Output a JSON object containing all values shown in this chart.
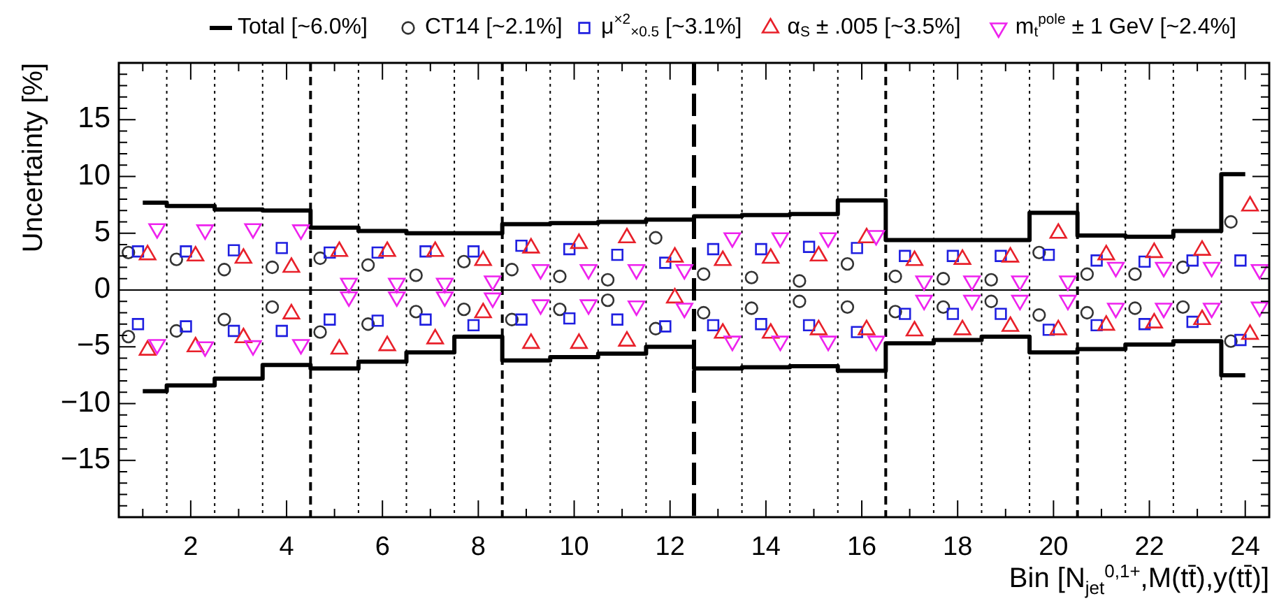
{
  "chart_data": {
    "type": "scatter",
    "xlabel": "Bin [N$_{jet}$$^{0,1+}$,M(tt̄),y(tt̄)]",
    "ylabel": "Uncertainty [%]",
    "legend": "top",
    "xlim": [
      0.5,
      24.5
    ],
    "ylim": [
      -20,
      20
    ],
    "xticks": [
      {
        "value": 1,
        "label": null
      },
      2,
      {
        "value": 3,
        "label": null
      },
      4,
      {
        "value": 5,
        "label": null
      },
      6,
      {
        "value": 7,
        "label": null
      },
      8,
      {
        "value": 9,
        "label": null
      },
      10,
      {
        "value": 11,
        "label": null
      },
      12,
      {
        "value": 13,
        "label": null
      },
      14,
      {
        "value": 15,
        "label": null
      },
      16,
      {
        "value": 17,
        "label": null
      },
      18,
      {
        "value": 19,
        "label": null
      },
      20,
      {
        "value": 21,
        "label": null
      },
      22,
      {
        "value": 23,
        "label": null
      },
      24
    ],
    "yticks": [
      {
        "value": -20,
        "label": null
      },
      {
        "value": -19,
        "label": null
      },
      {
        "value": -18,
        "label": null
      },
      {
        "value": -17,
        "label": null
      },
      {
        "value": -16,
        "label": null
      },
      {
        "value": -15,
        "label": "−15"
      },
      {
        "value": -14,
        "label": null
      },
      {
        "value": -13,
        "label": null
      },
      {
        "value": -12,
        "label": null
      },
      {
        "value": -11,
        "label": null
      },
      {
        "value": -10,
        "label": "−10"
      },
      {
        "value": -9,
        "label": null
      },
      {
        "value": -8,
        "label": null
      },
      {
        "value": -7,
        "label": null
      },
      {
        "value": -6,
        "label": null
      },
      {
        "value": -5,
        "label": "−5"
      },
      {
        "value": -4,
        "label": null
      },
      {
        "value": -3,
        "label": null
      },
      {
        "value": -2,
        "label": null
      },
      {
        "value": -1,
        "label": null
      },
      0,
      {
        "value": 1,
        "label": null
      },
      {
        "value": 2,
        "label": null
      },
      {
        "value": 3,
        "label": null
      },
      {
        "value": 4,
        "label": null
      },
      5,
      {
        "value": 6,
        "label": null
      },
      {
        "value": 7,
        "label": null
      },
      {
        "value": 8,
        "label": null
      },
      {
        "value": 9,
        "label": null
      },
      10,
      {
        "value": 11,
        "label": null
      },
      {
        "value": 12,
        "label": null
      },
      {
        "value": 13,
        "label": null
      },
      {
        "value": 14,
        "label": null
      },
      15,
      {
        "value": 16,
        "label": null
      },
      {
        "value": 17,
        "label": null
      },
      {
        "value": 18,
        "label": null
      },
      {
        "value": 19,
        "label": null
      },
      {
        "value": 20,
        "label": null
      }
    ],
    "ref_lines": [
      {
        "axis": "y",
        "value": 0,
        "line_style": "solid"
      },
      {
        "axis": "x",
        "value": 1.5,
        "line_style": "dotted"
      },
      {
        "axis": "x",
        "value": 2.5,
        "line_style": "dotted"
      },
      {
        "axis": "x",
        "value": 3.5,
        "line_style": "dotted"
      },
      {
        "axis": "x",
        "value": 4.5,
        "line_style": "dashed"
      },
      {
        "axis": "x",
        "value": 5.5,
        "line_style": "dotted"
      },
      {
        "axis": "x",
        "value": 6.5,
        "line_style": "dotted"
      },
      {
        "axis": "x",
        "value": 7.5,
        "line_style": "dotted"
      },
      {
        "axis": "x",
        "value": 8.5,
        "line_style": "dashed"
      },
      {
        "axis": "x",
        "value": 9.5,
        "line_style": "dotted"
      },
      {
        "axis": "x",
        "value": 10.5,
        "line_style": "dotted"
      },
      {
        "axis": "x",
        "value": 11.5,
        "line_style": "dotted"
      },
      {
        "axis": "x",
        "value": 12.5,
        "line_style": "longdash"
      },
      {
        "axis": "x",
        "value": 13.5,
        "line_style": "dotted"
      },
      {
        "axis": "x",
        "value": 14.5,
        "line_style": "dotted"
      },
      {
        "axis": "x",
        "value": 15.5,
        "line_style": "dotted"
      },
      {
        "axis": "x",
        "value": 16.5,
        "line_style": "dashed"
      },
      {
        "axis": "x",
        "value": 17.5,
        "line_style": "dotted"
      },
      {
        "axis": "x",
        "value": 18.5,
        "line_style": "dotted"
      },
      {
        "axis": "x",
        "value": 19.5,
        "line_style": "dotted"
      },
      {
        "axis": "x",
        "value": 20.5,
        "line_style": "dashed"
      },
      {
        "axis": "x",
        "value": 21.5,
        "line_style": "dotted"
      },
      {
        "axis": "x",
        "value": 22.5,
        "line_style": "dotted"
      },
      {
        "axis": "x",
        "value": 23.5,
        "line_style": "dotted"
      }
    ],
    "series": [
      {
        "name": "Total [~6.0%]",
        "type": "step",
        "color": "#000000",
        "x": [
          1,
          2,
          3,
          4,
          5,
          6,
          7,
          8,
          9,
          10,
          11,
          12,
          13,
          14,
          15,
          16,
          17,
          18,
          19,
          20,
          21,
          22,
          23,
          24
        ],
        "values": [
          7.7,
          7.4,
          7.1,
          7.0,
          5.5,
          5.2,
          5.0,
          5.0,
          5.8,
          5.9,
          6.0,
          6.2,
          6.5,
          6.6,
          6.7,
          7.9,
          4.4,
          4.4,
          4.4,
          6.8,
          4.8,
          4.7,
          5.2,
          10.2
        ]
      },
      {
        "type": "step",
        "color": "#000000",
        "x": [
          1,
          2,
          3,
          4,
          5,
          6,
          7,
          8,
          9,
          10,
          11,
          12,
          13,
          14,
          15,
          16,
          17,
          18,
          19,
          20,
          21,
          22,
          23,
          24
        ],
        "values": [
          -8.9,
          -8.4,
          -7.8,
          -6.6,
          -6.9,
          -6.3,
          -5.5,
          -4.1,
          -6.2,
          -5.9,
          -5.6,
          -5.0,
          -6.9,
          -6.8,
          -6.7,
          -7.1,
          -4.7,
          -4.4,
          -4.1,
          -5.5,
          -5.2,
          -4.8,
          -4.5,
          -7.5
        ]
      },
      {
        "name": "CT14 [~2.1%]",
        "marker": "circle",
        "color": "#333333",
        "x": [
          0.7,
          1.7,
          2.7,
          3.7,
          4.7,
          5.7,
          6.7,
          7.7,
          8.7,
          9.7,
          10.7,
          11.7,
          12.7,
          13.7,
          14.7,
          15.7,
          16.7,
          17.7,
          18.7,
          19.7,
          20.7,
          21.7,
          22.7,
          23.7
        ],
        "values": [
          3.3,
          2.7,
          1.8,
          2.0,
          2.8,
          2.2,
          1.3,
          2.5,
          1.8,
          1.2,
          0.9,
          4.6,
          1.4,
          1.1,
          0.8,
          2.3,
          1.2,
          1.0,
          0.9,
          3.3,
          1.4,
          1.4,
          2.0,
          6.0
        ]
      },
      {
        "marker": "circle",
        "color": "#333333",
        "x": [
          0.7,
          1.7,
          2.7,
          3.7,
          4.7,
          5.7,
          6.7,
          7.7,
          8.7,
          9.7,
          10.7,
          11.7,
          12.7,
          13.7,
          14.7,
          15.7,
          16.7,
          17.7,
          18.7,
          19.7,
          20.7,
          21.7,
          22.7,
          23.7
        ],
        "values": [
          -4.1,
          -3.6,
          -2.6,
          -1.5,
          -3.7,
          -3.0,
          -1.9,
          -1.7,
          -2.6,
          -1.7,
          -0.9,
          -3.4,
          -2.0,
          -1.6,
          -1.0,
          -1.5,
          -1.9,
          -1.5,
          -1.0,
          -2.2,
          -2.0,
          -1.6,
          -1.5,
          -4.5
        ]
      },
      {
        "name": "μ$^{×2}$$_{×0.5}$ [~3.1%]",
        "marker": "square",
        "color": "#1f1fe0",
        "x": [
          0.9,
          1.9,
          2.9,
          3.9,
          4.9,
          5.9,
          6.9,
          7.9,
          8.9,
          9.9,
          10.9,
          11.9,
          12.9,
          13.9,
          14.9,
          15.9,
          16.9,
          17.9,
          18.9,
          19.9,
          20.9,
          21.9,
          22.9,
          23.9
        ],
        "values": [
          3.4,
          3.4,
          3.5,
          3.7,
          3.3,
          3.3,
          3.4,
          3.4,
          3.9,
          3.6,
          3.1,
          2.4,
          3.6,
          3.6,
          3.8,
          3.7,
          3.0,
          3.0,
          3.0,
          3.1,
          2.6,
          2.5,
          2.6,
          2.6
        ]
      },
      {
        "marker": "square",
        "color": "#1f1fe0",
        "x": [
          0.9,
          1.9,
          2.9,
          3.9,
          4.9,
          5.9,
          6.9,
          7.9,
          8.9,
          9.9,
          10.9,
          11.9,
          12.9,
          13.9,
          14.9,
          15.9,
          16.9,
          17.9,
          18.9,
          19.9,
          20.9,
          21.9,
          22.9,
          23.9
        ],
        "values": [
          -3.0,
          -3.2,
          -3.6,
          -3.6,
          -2.6,
          -2.7,
          -2.6,
          -3.1,
          -2.6,
          -2.5,
          -2.6,
          -3.2,
          -3.1,
          -3.0,
          -3.1,
          -3.7,
          -2.1,
          -2.1,
          -2.1,
          -3.5,
          -3.1,
          -3.0,
          -2.8,
          -4.4
        ]
      },
      {
        "name": "α$_{S}$ ± .005 [~3.5%]",
        "marker": "triangle",
        "color": "#e8202a",
        "x": [
          1.1,
          2.1,
          3.1,
          4.1,
          5.1,
          6.1,
          7.1,
          8.1,
          9.1,
          10.1,
          11.1,
          12.1,
          13.1,
          14.1,
          15.1,
          16.1,
          17.1,
          18.1,
          19.1,
          20.1,
          21.1,
          22.1,
          23.1,
          24.1
        ],
        "values": [
          3.1,
          3.0,
          2.8,
          2.0,
          3.4,
          3.4,
          3.4,
          2.6,
          3.7,
          4.1,
          4.6,
          2.9,
          2.6,
          2.8,
          3.0,
          4.6,
          2.6,
          2.7,
          2.9,
          5.0,
          3.1,
          3.3,
          3.5,
          7.4
        ]
      },
      {
        "marker": "triangle",
        "color": "#e8202a",
        "x": [
          1.1,
          2.1,
          3.1,
          4.1,
          5.1,
          6.1,
          7.1,
          8.1,
          9.1,
          10.1,
          11.1,
          12.1,
          13.1,
          14.1,
          15.1,
          16.1,
          17.1,
          18.1,
          19.1,
          20.1,
          21.1,
          22.1,
          23.1,
          24.1
        ],
        "values": [
          -5.3,
          -5.0,
          -4.2,
          -2.1,
          -5.2,
          -4.9,
          -4.3,
          -2.0,
          -4.7,
          -4.7,
          -4.5,
          -0.7,
          -3.8,
          -3.8,
          -3.5,
          -3.5,
          -3.6,
          -3.5,
          -3.2,
          -3.5,
          -3.1,
          -2.9,
          -2.6,
          -3.9
        ]
      },
      {
        "name": "m$_{t}$$^{pole}$ ± 1 GeV [~2.4%]",
        "marker": "triangle-down",
        "color": "#ee22ee",
        "x": [
          1.3,
          2.3,
          3.3,
          4.3,
          5.3,
          6.3,
          7.3,
          8.3,
          9.3,
          10.3,
          11.3,
          12.3,
          13.3,
          14.3,
          15.3,
          16.3,
          17.3,
          18.3,
          19.3,
          20.3,
          21.3,
          22.3,
          23.3,
          24.3
        ],
        "values": [
          5.4,
          5.3,
          5.4,
          5.3,
          0.6,
          0.6,
          0.6,
          0.8,
          1.8,
          1.8,
          1.8,
          1.8,
          4.6,
          4.6,
          4.6,
          4.8,
          0.8,
          0.8,
          0.8,
          0.8,
          2.0,
          2.0,
          2.0,
          1.8
        ]
      },
      {
        "marker": "triangle-down",
        "color": "#ee22ee",
        "x": [
          1.3,
          2.3,
          3.3,
          4.3,
          5.3,
          6.3,
          7.3,
          8.3,
          9.3,
          10.3,
          11.3,
          12.3,
          13.3,
          14.3,
          15.3,
          16.3,
          17.3,
          18.3,
          19.3,
          20.3,
          21.3,
          22.3,
          23.3,
          24.3
        ],
        "values": [
          -4.8,
          -5.0,
          -4.9,
          -4.8,
          -0.6,
          -0.6,
          -0.6,
          -0.7,
          -1.3,
          -1.3,
          -1.4,
          -1.6,
          -4.5,
          -4.5,
          -4.5,
          -4.5,
          -0.9,
          -0.9,
          -0.9,
          -0.9,
          -1.6,
          -1.6,
          -1.6,
          -1.5
        ]
      }
    ]
  }
}
